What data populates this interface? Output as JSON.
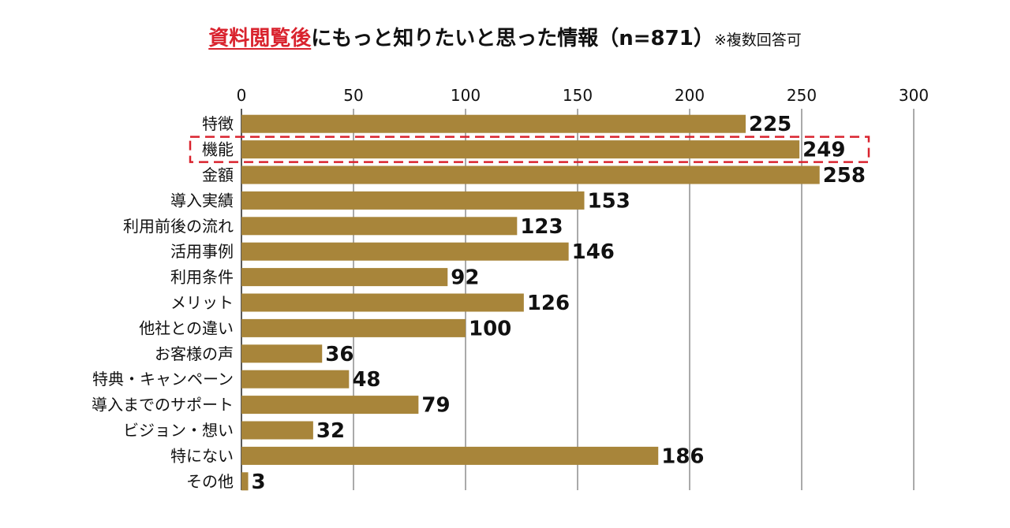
{
  "chart_data": {
    "type": "bar",
    "orientation": "horizontal",
    "title_highlight": "資料閲覧後",
    "title_main": "にもっと知りたいと思った情報（n=871）",
    "title_note": "※複数回答可",
    "categories": [
      "特徴",
      "機能",
      "金額",
      "導入実績",
      "利用前後の流れ",
      "活用事例",
      "利用条件",
      "メリット",
      "他社との違い",
      "お客様の声",
      "特典・キャンペーン",
      "導入までのサポート",
      "ビジョン・想い",
      "特にない",
      "その他"
    ],
    "values": [
      225,
      249,
      258,
      153,
      123,
      146,
      92,
      126,
      100,
      36,
      48,
      79,
      32,
      186,
      3
    ],
    "xlim": [
      0,
      300
    ],
    "xticks": [
      0,
      50,
      100,
      150,
      200,
      250,
      300
    ],
    "highlighted_category": "機能",
    "bar_color": "#a8853a",
    "highlight_color": "#d9232e",
    "grid": true
  }
}
